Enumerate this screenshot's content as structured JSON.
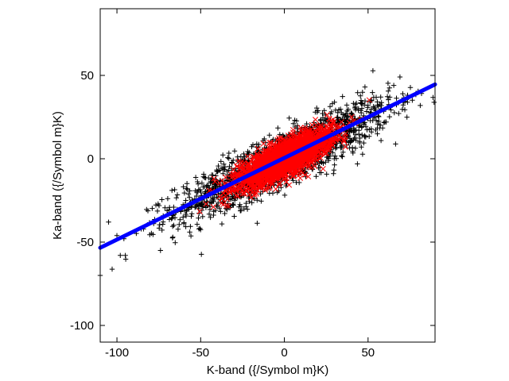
{
  "chart_data": {
    "type": "scatter",
    "title": "",
    "xlabel": "K-band ({/Symbol m}K)",
    "ylabel": "Ka-band ({/Symbol m}K)",
    "xlim": [
      -110,
      90
    ],
    "ylim": [
      -110,
      90
    ],
    "xticks": [
      -100,
      -50,
      0,
      50
    ],
    "yticks": [
      -100,
      -50,
      0,
      50
    ],
    "xtick_labels": [
      "-100",
      "-50",
      "0",
      "50"
    ],
    "ytick_labels": [
      "-100",
      "-50",
      "0",
      "50"
    ],
    "grid": false,
    "legend": "none",
    "series": [
      {
        "marker": "plus",
        "color": "#000000",
        "distribution": {
          "x_mean": 0,
          "x_sd": 32,
          "slope": 0.48,
          "y_sd": 8,
          "count": 1800
        }
      },
      {
        "marker": "cross",
        "color": "#ff0000",
        "distribution": {
          "x_mean": 0,
          "x_sd": 14,
          "slope": 0.48,
          "y_sd": 5,
          "count": 2400
        }
      },
      {
        "marker": "dot-line",
        "color": "#0000ff",
        "fit": {
          "slope": 0.49,
          "intercept": 0.5,
          "x_range": [
            -110,
            90
          ]
        }
      }
    ]
  }
}
